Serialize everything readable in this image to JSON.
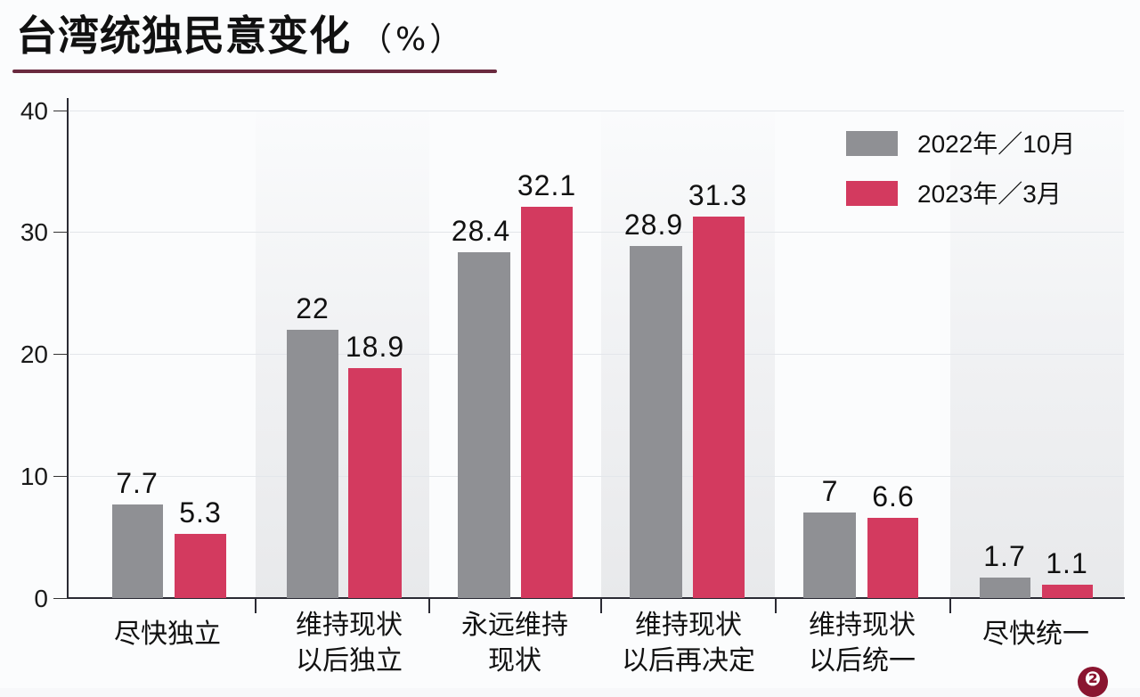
{
  "title": {
    "text": "台湾统独民意变化",
    "unit": "（%）"
  },
  "colors": {
    "series_2022": "#8f9094",
    "series_2023": "#d33a5f",
    "title_rule": "#6a2a3f",
    "band": "#ececee"
  },
  "legend": [
    {
      "label": "2022年／10月",
      "color": "#8f9094"
    },
    {
      "label": "2023年／3月",
      "color": "#d33a5f"
    }
  ],
  "y_axis": {
    "ticks": [
      "0",
      "10",
      "20",
      "30",
      "40"
    ]
  },
  "categories": [
    {
      "label": "尽快独立",
      "v2022": "7.7",
      "v2023": "5.3"
    },
    {
      "label": "维持现状\n以后独立",
      "v2022": "22",
      "v2023": "18.9"
    },
    {
      "label": "永远维持\n现状",
      "v2022": "28.4",
      "v2023": "32.1"
    },
    {
      "label": "维持现状\n以后再决定",
      "v2022": "28.9",
      "v2023": "31.3"
    },
    {
      "label": "维持现状\n以后统一",
      "v2022": "7",
      "v2023": "6.6"
    },
    {
      "label": "尽快统一",
      "v2022": "1.7",
      "v2023": "1.1"
    }
  ],
  "logo": {
    "glyph": "❷"
  },
  "chart_data": {
    "type": "bar",
    "title": "台湾统独民意变化（%）",
    "xlabel": "",
    "ylabel": "%",
    "ylim": [
      0,
      40
    ],
    "yticks": [
      0,
      10,
      20,
      30,
      40
    ],
    "grid": true,
    "legend_position": "top-right",
    "categories": [
      "尽快独立",
      "维持现状以后独立",
      "永远维持现状",
      "维持现状以后再决定",
      "维持现状以后统一",
      "尽快统一"
    ],
    "series": [
      {
        "name": "2022年／10月",
        "color": "#8f9094",
        "values": [
          7.7,
          22,
          28.4,
          28.9,
          7,
          1.7
        ]
      },
      {
        "name": "2023年／3月",
        "color": "#d33a5f",
        "values": [
          5.3,
          18.9,
          32.1,
          31.3,
          6.6,
          1.1
        ]
      }
    ]
  }
}
